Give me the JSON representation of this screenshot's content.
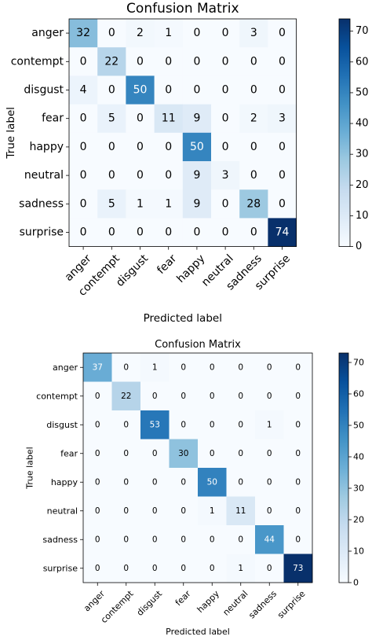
{
  "chart_data": [
    {
      "type": "heatmap",
      "title": "Confusion Matrix",
      "xlabel": "Predicted label",
      "ylabel": "True label",
      "x_categories": [
        "anger",
        "contempt",
        "disgust",
        "fear",
        "happy",
        "neutral",
        "sadness",
        "surprise"
      ],
      "y_categories": [
        "anger",
        "contempt",
        "disgust",
        "fear",
        "happy",
        "neutral",
        "sadness",
        "surprise"
      ],
      "values": [
        [
          32,
          0,
          2,
          1,
          0,
          0,
          3,
          0
        ],
        [
          0,
          22,
          0,
          0,
          0,
          0,
          0,
          0
        ],
        [
          4,
          0,
          50,
          0,
          0,
          0,
          0,
          0
        ],
        [
          0,
          5,
          0,
          11,
          9,
          0,
          2,
          3
        ],
        [
          0,
          0,
          0,
          0,
          50,
          0,
          0,
          0
        ],
        [
          0,
          0,
          0,
          0,
          9,
          3,
          0,
          0
        ],
        [
          0,
          5,
          1,
          1,
          9,
          0,
          28,
          0
        ],
        [
          0,
          0,
          0,
          0,
          0,
          0,
          0,
          74
        ]
      ],
      "colorbar": {
        "min": 0,
        "max": 74,
        "ticks": [
          0,
          10,
          20,
          30,
          40,
          50,
          60,
          70
        ]
      },
      "colormap": [
        "#f7fbff",
        "#deebf7",
        "#c6dbef",
        "#9ecae1",
        "#6baed6",
        "#4292c6",
        "#2171b5",
        "#08519c",
        "#08306b"
      ],
      "grid": false
    },
    {
      "type": "heatmap",
      "title": "Confusion Matrix",
      "xlabel": "Predicted label",
      "ylabel": "True label",
      "x_categories": [
        "anger",
        "contempt",
        "disgust",
        "fear",
        "happy",
        "neutral",
        "sadness",
        "surprise"
      ],
      "y_categories": [
        "anger",
        "contempt",
        "disgust",
        "fear",
        "happy",
        "neutral",
        "sadness",
        "surprise"
      ],
      "values": [
        [
          37,
          0,
          1,
          0,
          0,
          0,
          0,
          0
        ],
        [
          0,
          22,
          0,
          0,
          0,
          0,
          0,
          0
        ],
        [
          0,
          0,
          53,
          0,
          0,
          0,
          1,
          0
        ],
        [
          0,
          0,
          0,
          30,
          0,
          0,
          0,
          0
        ],
        [
          0,
          0,
          0,
          0,
          50,
          0,
          0,
          0
        ],
        [
          0,
          0,
          0,
          0,
          1,
          11,
          0,
          0
        ],
        [
          0,
          0,
          0,
          0,
          0,
          0,
          44,
          0
        ],
        [
          0,
          0,
          0,
          0,
          0,
          1,
          0,
          73
        ]
      ],
      "colorbar": {
        "min": 0,
        "max": 73,
        "ticks": [
          0,
          10,
          20,
          30,
          40,
          50,
          60,
          70
        ]
      },
      "colormap": [
        "#f7fbff",
        "#deebf7",
        "#c6dbef",
        "#9ecae1",
        "#6baed6",
        "#4292c6",
        "#2171b5",
        "#08519c",
        "#08306b"
      ],
      "grid": false
    }
  ]
}
